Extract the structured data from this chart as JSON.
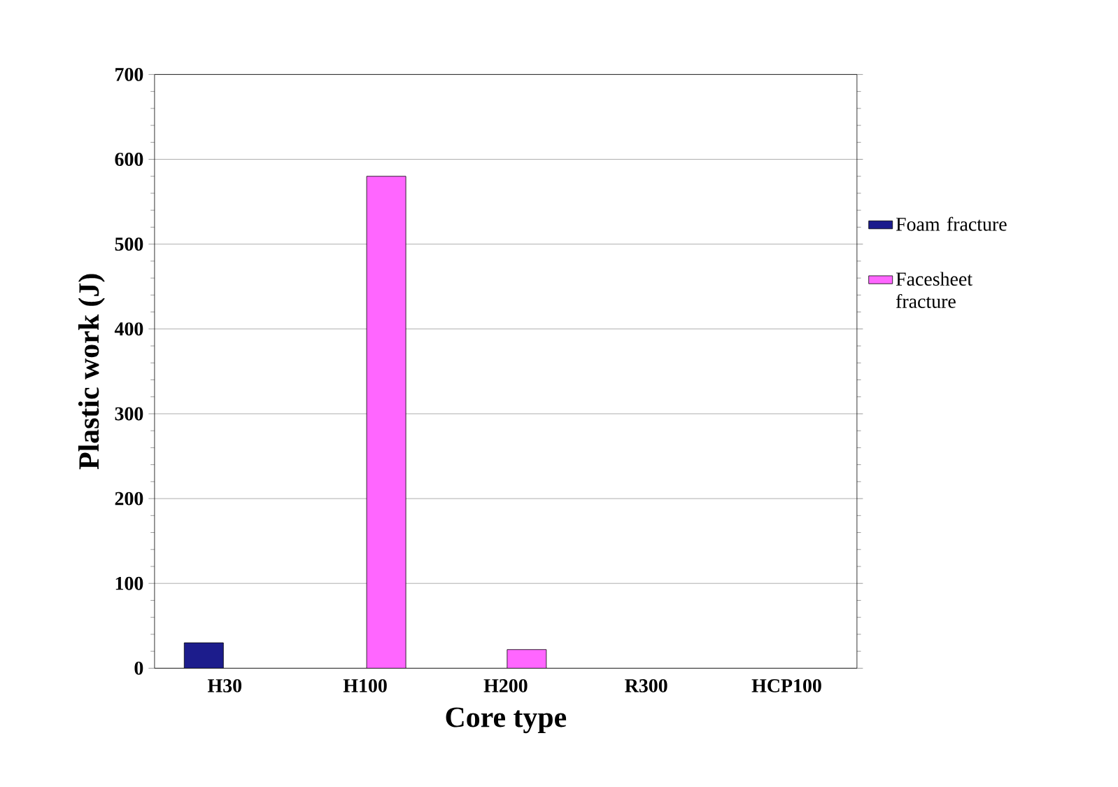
{
  "chart_data": {
    "type": "bar",
    "xlabel": "Core type",
    "ylabel": "Plastic work (J)",
    "categories": [
      "H30",
      "H100",
      "H200",
      "R300",
      "HCP100"
    ],
    "series": [
      {
        "name": "Foam fracture",
        "color": "#1c1c8c",
        "values": [
          30,
          null,
          null,
          null,
          null
        ]
      },
      {
        "name": "Facesheet fracture",
        "color": "#ff66ff",
        "values": [
          null,
          580,
          22,
          null,
          null
        ]
      }
    ],
    "ylim": [
      0,
      700
    ],
    "yticks": [
      0,
      100,
      200,
      300,
      400,
      500,
      600,
      700
    ],
    "grid": "y",
    "legend": "right"
  }
}
